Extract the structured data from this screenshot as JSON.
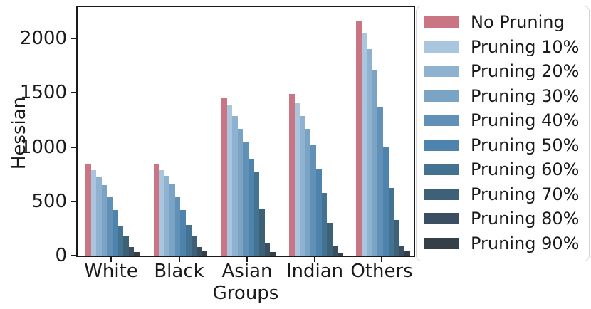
{
  "chart_data": {
    "type": "bar",
    "title": "",
    "xlabel": "Groups",
    "ylabel": "Hessian",
    "categories": [
      "White",
      "Black",
      "Asian",
      "Indian",
      "Others"
    ],
    "series": [
      {
        "name": "No Pruning",
        "color": "#ca7584",
        "values": [
          840,
          840,
          1455,
          1490,
          2160
        ]
      },
      {
        "name": "Pruning 10%",
        "color": "#a9c6de",
        "values": [
          785,
          790,
          1385,
          1405,
          2050
        ]
      },
      {
        "name": "Pruning 20%",
        "color": "#8fb2d0",
        "values": [
          725,
          735,
          1285,
          1285,
          1900
        ]
      },
      {
        "name": "Pruning 30%",
        "color": "#7aa3c4",
        "values": [
          650,
          660,
          1165,
          1165,
          1710
        ]
      },
      {
        "name": "Pruning 40%",
        "color": "#6191b7",
        "values": [
          545,
          540,
          1050,
          1025,
          1370
        ]
      },
      {
        "name": "Pruning 50%",
        "color": "#4d83ac",
        "values": [
          420,
          420,
          885,
          800,
          1005
        ]
      },
      {
        "name": "Pruning 60%",
        "color": "#437390",
        "values": [
          275,
          285,
          765,
          575,
          625
        ]
      },
      {
        "name": "Pruning 70%",
        "color": "#3d6278",
        "values": [
          185,
          180,
          430,
          300,
          325
        ]
      },
      {
        "name": "Pruning 80%",
        "color": "#3a4f61",
        "values": [
          80,
          80,
          110,
          95,
          95
        ]
      },
      {
        "name": "Pruning 90%",
        "color": "#343f48",
        "values": [
          30,
          40,
          35,
          25,
          40
        ]
      }
    ],
    "yticks": [
      0,
      500,
      1000,
      1500,
      2000
    ],
    "ylim": [
      0,
      2290
    ],
    "legend_position": "outside-right",
    "grid": false,
    "axis_color": "#1a1a1a"
  }
}
